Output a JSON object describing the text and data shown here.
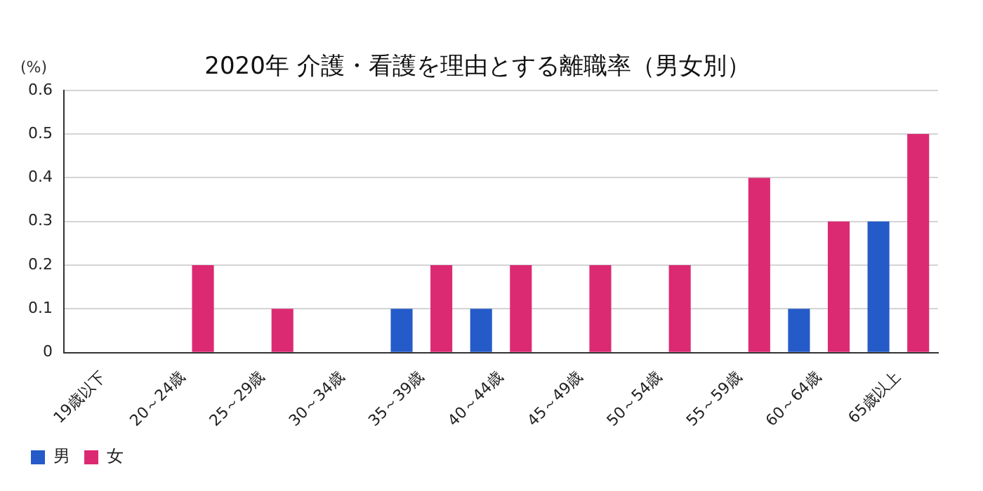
{
  "chart_data": {
    "type": "bar",
    "title": "2020年 介護・看護を理由とする離職率（男女別）",
    "ylabel": "(%)",
    "categories": [
      "19歳以下",
      "20～24歳",
      "25～29歳",
      "30～34歳",
      "35～39歳",
      "40～44歳",
      "45～49歳",
      "50～54歳",
      "55～59歳",
      "60～64歳",
      "65歳以上"
    ],
    "series": [
      {
        "name": "男",
        "color": "#255bc9",
        "values": [
          0,
          0,
          0,
          0,
          0.1,
          0.1,
          0,
          0,
          0,
          0.1,
          0.3
        ]
      },
      {
        "name": "女",
        "color": "#dc2a72",
        "values": [
          0,
          0.2,
          0.1,
          0,
          0.2,
          0.2,
          0.2,
          0.2,
          0.4,
          0.3,
          0.5
        ]
      }
    ],
    "ylim": [
      0,
      0.6
    ],
    "yticks": [
      0,
      0.1,
      0.2,
      0.3,
      0.4,
      0.5,
      0.6
    ],
    "grid": "y",
    "legend": "bottom left"
  }
}
